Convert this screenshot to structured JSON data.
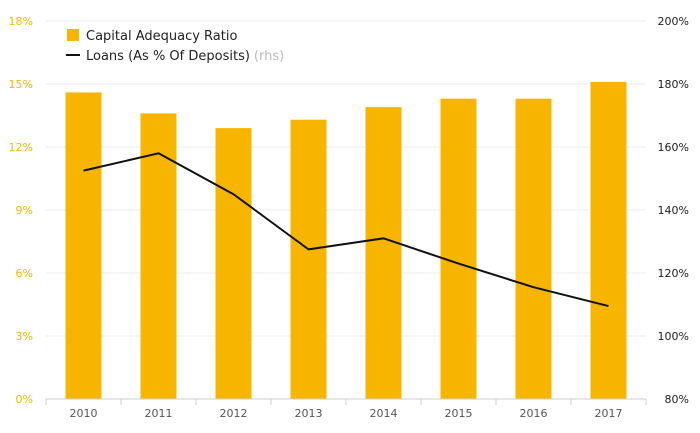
{
  "chart_data": {
    "type": "bar",
    "categories": [
      "2010",
      "2011",
      "2012",
      "2013",
      "2014",
      "2015",
      "2016",
      "2017"
    ],
    "series": [
      {
        "name": "Capital Adequacy Ratio",
        "type": "bar",
        "axis": "left",
        "color": "#f7b500",
        "values": [
          14.6,
          13.6,
          12.9,
          13.3,
          13.9,
          14.3,
          14.3,
          15.1
        ]
      },
      {
        "name": "Loans (As % Of Deposits)",
        "name_note": "(rhs)",
        "type": "line",
        "axis": "right",
        "color": "#111111",
        "values": [
          152.5,
          158.0,
          145.0,
          127.5,
          131.0,
          123.0,
          115.5,
          109.5
        ]
      }
    ],
    "y_left": {
      "ylim": [
        0,
        18
      ],
      "ticks": [
        "0%",
        "3%",
        "6%",
        "9%",
        "12%",
        "15%",
        "18%"
      ],
      "color": "#f7b500"
    },
    "y_right": {
      "ylim": [
        80,
        200
      ],
      "ticks": [
        "80%",
        "100%",
        "120%",
        "140%",
        "160%",
        "180%",
        "200%"
      ]
    },
    "grid": true,
    "legend_position": "top-left"
  }
}
